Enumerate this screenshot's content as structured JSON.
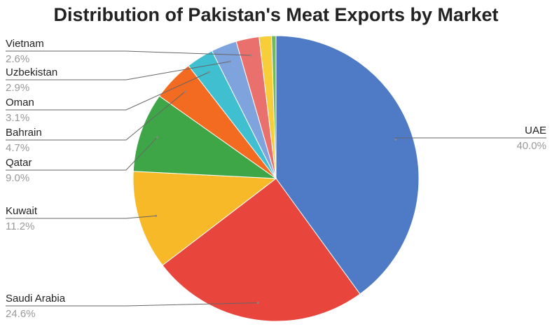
{
  "chart_data": {
    "type": "pie",
    "title": "Distribution of Pakistan's Meat Exports by Market",
    "categories": [
      "UAE",
      "Saudi Arabia",
      "Kuwait",
      "Qatar",
      "Bahrain",
      "Oman",
      "Uzbekistan",
      "Vietnam",
      null,
      null
    ],
    "values": [
      40.0,
      24.6,
      11.2,
      9.0,
      4.7,
      3.1,
      2.9,
      2.6,
      1.4,
      0.5
    ],
    "value_labels": [
      "40.0%",
      "24.6%",
      "11.2%",
      "9.0%",
      "4.7%",
      "3.1%",
      "2.9%",
      "2.6%",
      null,
      null
    ],
    "colors": [
      "#4f7bc6",
      "#e8453c",
      "#f7b928",
      "#3fa648",
      "#f26b21",
      "#3fbfcf",
      "#7fa3dc",
      "#e9706d",
      "#f7cd3a",
      "#72b85c"
    ]
  }
}
